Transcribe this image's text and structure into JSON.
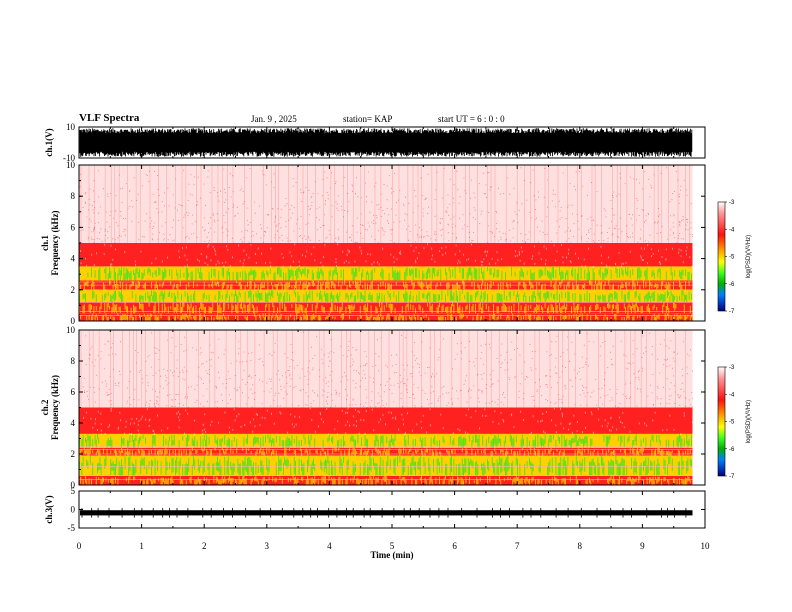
{
  "header": {
    "title": "VLF Spectra",
    "date": "Jan. 9 , 2025",
    "station": "station= KAP",
    "start": "start UT = 6 : 0 : 0"
  },
  "colors": {
    "background_noise": "#ffffff",
    "low": "#ff9999",
    "mid": "#ff2020",
    "high": "#ffd000",
    "peak": "#40e020",
    "waveform": "#000000"
  },
  "chart_data": [
    {
      "type": "line",
      "name": "ch1-waveform",
      "ylabel": "ch.1(V)",
      "ylim": [
        -10,
        10
      ],
      "yticks": [
        "10",
        "-10"
      ],
      "xlim": [
        0,
        10
      ],
      "amplitude_note": "saturated noise spanning roughly -9 to 9 V"
    },
    {
      "type": "heatmap",
      "name": "ch1-spectrogram",
      "ylabel": "ch.1 Frequency (kHz)",
      "ylim": [
        0,
        10
      ],
      "yticks": [
        "0",
        "2",
        "4",
        "6",
        "8",
        "10"
      ],
      "xlim": [
        0,
        10
      ],
      "data_end_min": 9.8,
      "bands": [
        {
          "from_khz": 0,
          "to_khz": 0.5,
          "level": "high"
        },
        {
          "from_khz": 0.5,
          "to_khz": 1.2,
          "level": "high"
        },
        {
          "from_khz": 1.2,
          "to_khz": 2.0,
          "level": "peak"
        },
        {
          "from_khz": 2.0,
          "to_khz": 2.6,
          "level": "high"
        },
        {
          "from_khz": 2.6,
          "to_khz": 3.5,
          "level": "peak"
        },
        {
          "from_khz": 3.5,
          "to_khz": 5.0,
          "level": "mid"
        },
        {
          "from_khz": 5.0,
          "to_khz": 10.0,
          "level": "low"
        }
      ],
      "colorbar": {
        "label": "log(PSD)(V²/Hz)",
        "ticks": [
          "-3",
          "-4",
          "-5",
          "-6",
          "-7"
        ],
        "range": [
          -7,
          -3
        ]
      }
    },
    {
      "type": "heatmap",
      "name": "ch2-spectrogram",
      "ylabel": "ch.2 Frequency (kHz)",
      "ylim": [
        0,
        10
      ],
      "yticks": [
        "0",
        "2",
        "4",
        "6",
        "8",
        "10"
      ],
      "xlim": [
        0,
        10
      ],
      "data_end_min": 9.8,
      "bands": [
        {
          "from_khz": 0,
          "to_khz": 0.6,
          "level": "high"
        },
        {
          "from_khz": 0.6,
          "to_khz": 1.9,
          "level": "peak"
        },
        {
          "from_khz": 1.9,
          "to_khz": 2.4,
          "level": "high"
        },
        {
          "from_khz": 2.4,
          "to_khz": 3.3,
          "level": "peak"
        },
        {
          "from_khz": 3.3,
          "to_khz": 5.0,
          "level": "mid"
        },
        {
          "from_khz": 5.0,
          "to_khz": 10.0,
          "level": "low"
        }
      ],
      "colorbar": {
        "label": "log(PSD)(V²/Hz)",
        "ticks": [
          "-3",
          "-4",
          "-5",
          "-6",
          "-7"
        ],
        "range": [
          -7,
          -3
        ]
      }
    },
    {
      "type": "line",
      "name": "ch3-waveform",
      "ylabel": "ch.3(V)",
      "ylim": [
        -5,
        5
      ],
      "yticks": [
        "5",
        "0",
        "-5"
      ],
      "xlim": [
        0,
        10
      ],
      "amplitude_note": "near-constant level around -0.8 V with small spikes"
    }
  ],
  "xaxis": {
    "label": "Time (min)",
    "ticks": [
      "0",
      "1",
      "2",
      "3",
      "4",
      "5",
      "6",
      "7",
      "8",
      "9",
      "10"
    ]
  }
}
